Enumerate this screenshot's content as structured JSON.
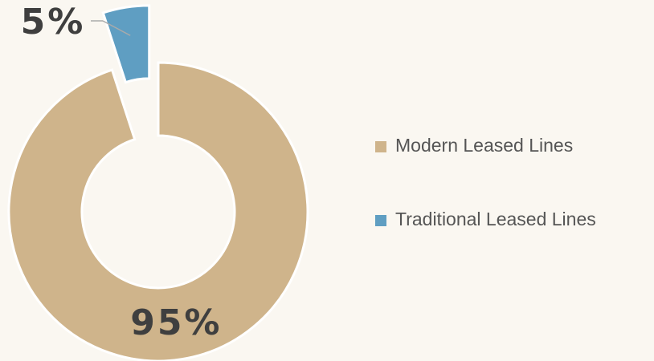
{
  "chart_data": {
    "type": "donut",
    "categories": [
      "Modern Leased Lines",
      "Traditional Leased Lines"
    ],
    "values": [
      95,
      5
    ],
    "value_labels": [
      "95%",
      "5%"
    ],
    "colors": [
      "#cfb48b",
      "#5f9ec2"
    ],
    "legend": "right"
  }
}
